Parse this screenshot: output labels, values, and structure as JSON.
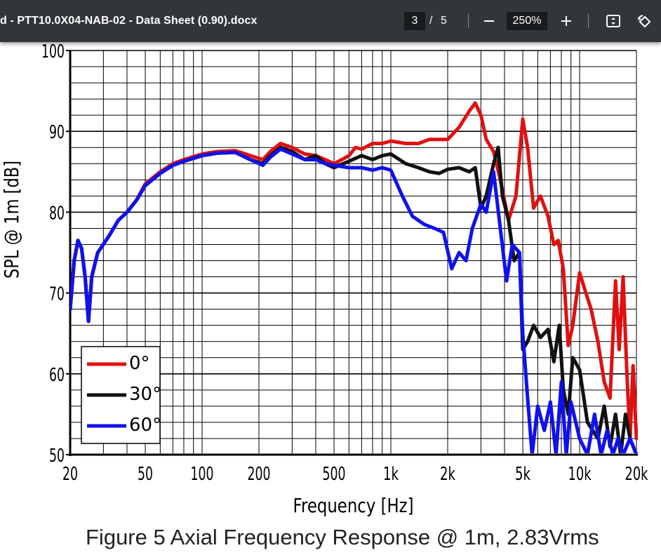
{
  "toolbar": {
    "document_title": "d - PTT10.0X04-NAB-02 - Data Sheet (0.90).docx",
    "current_page": "3",
    "page_separator": "/",
    "total_pages": "5",
    "zoom_level": "250%",
    "icons": [
      "minus-icon",
      "plus-icon",
      "fit-page-icon",
      "rotate-icon"
    ],
    "colors": {
      "background": "#323639",
      "field": "#191b1c",
      "text": "#ffffff"
    }
  },
  "figure": {
    "caption": "Figure 5 Axial Frequency Response @ 1m, 2.83Vrms"
  },
  "chart_data": {
    "type": "line",
    "xlabel": "Frequency [Hz]",
    "ylabel": "SPL @ 1m [dB]",
    "x_scale": "log",
    "xlim": [
      20,
      20000
    ],
    "ylim": [
      50,
      100
    ],
    "x_ticks": [
      20,
      50,
      100,
      200,
      500,
      1000,
      2000,
      5000,
      10000,
      20000
    ],
    "x_tick_labels": [
      "20",
      "50",
      "100",
      "200",
      "500",
      "1k",
      "2k",
      "5k",
      "10k",
      "20k"
    ],
    "y_ticks": [
      50,
      60,
      70,
      80,
      90,
      100
    ],
    "y_tick_labels": [
      "50",
      "60",
      "70",
      "80",
      "90",
      "100"
    ],
    "grid": true,
    "legend_position": "bottom-left",
    "series": [
      {
        "name": "0°",
        "color": "#e01010",
        "points": [
          [
            20,
            68
          ],
          [
            21,
            74
          ],
          [
            22,
            76.5
          ],
          [
            23,
            75.5
          ],
          [
            24,
            72
          ],
          [
            25,
            66.5
          ],
          [
            26,
            72
          ],
          [
            28,
            75
          ],
          [
            32,
            77
          ],
          [
            36,
            79
          ],
          [
            40,
            80
          ],
          [
            45,
            81.5
          ],
          [
            50,
            83.5
          ],
          [
            60,
            85
          ],
          [
            70,
            86
          ],
          [
            80,
            86.5
          ],
          [
            100,
            87.2
          ],
          [
            120,
            87.5
          ],
          [
            150,
            87.6
          ],
          [
            180,
            87
          ],
          [
            210,
            86.5
          ],
          [
            230,
            87.5
          ],
          [
            260,
            88.5
          ],
          [
            300,
            88
          ],
          [
            350,
            87.2
          ],
          [
            400,
            87
          ],
          [
            450,
            86.5
          ],
          [
            500,
            86
          ],
          [
            550,
            86.5
          ],
          [
            600,
            87
          ],
          [
            650,
            88
          ],
          [
            700,
            87.8
          ],
          [
            800,
            88.5
          ],
          [
            900,
            88.5
          ],
          [
            1000,
            88.8
          ],
          [
            1200,
            88.5
          ],
          [
            1400,
            88.5
          ],
          [
            1600,
            89
          ],
          [
            2000,
            89
          ],
          [
            2300,
            90.5
          ],
          [
            2600,
            92.5
          ],
          [
            2800,
            93.5
          ],
          [
            3000,
            92
          ],
          [
            3200,
            89
          ],
          [
            3500,
            87.5
          ],
          [
            3800,
            84
          ],
          [
            4200,
            79
          ],
          [
            4600,
            82
          ],
          [
            5000,
            91.5
          ],
          [
            5300,
            88
          ],
          [
            5700,
            80.5
          ],
          [
            6200,
            82
          ],
          [
            6800,
            79.5
          ],
          [
            7300,
            76
          ],
          [
            7700,
            76.5
          ],
          [
            8200,
            73
          ],
          [
            8700,
            63.5
          ],
          [
            9200,
            66
          ],
          [
            10000,
            72.5
          ],
          [
            10800,
            70
          ],
          [
            11500,
            68
          ],
          [
            12500,
            64
          ],
          [
            13500,
            59
          ],
          [
            14500,
            57
          ],
          [
            15500,
            71.5
          ],
          [
            16200,
            63
          ],
          [
            17000,
            72
          ],
          [
            17800,
            60
          ],
          [
            18500,
            52
          ],
          [
            19200,
            61
          ],
          [
            20000,
            52
          ]
        ]
      },
      {
        "name": "30°",
        "color": "#111111",
        "points": [
          [
            20,
            68
          ],
          [
            21,
            74
          ],
          [
            22,
            76.5
          ],
          [
            23,
            75.5
          ],
          [
            24,
            72
          ],
          [
            25,
            66.5
          ],
          [
            26,
            72
          ],
          [
            28,
            75
          ],
          [
            32,
            77
          ],
          [
            36,
            79
          ],
          [
            40,
            80
          ],
          [
            45,
            81.5
          ],
          [
            50,
            83.3
          ],
          [
            60,
            84.8
          ],
          [
            70,
            85.8
          ],
          [
            80,
            86.3
          ],
          [
            100,
            87
          ],
          [
            120,
            87.3
          ],
          [
            150,
            87.4
          ],
          [
            180,
            86.5
          ],
          [
            210,
            86
          ],
          [
            230,
            87
          ],
          [
            260,
            88
          ],
          [
            300,
            87.5
          ],
          [
            350,
            86.5
          ],
          [
            400,
            87
          ],
          [
            450,
            86
          ],
          [
            500,
            85.5
          ],
          [
            600,
            86.3
          ],
          [
            700,
            87
          ],
          [
            800,
            86.5
          ],
          [
            900,
            87
          ],
          [
            1000,
            87.2
          ],
          [
            1200,
            86
          ],
          [
            1400,
            85.5
          ],
          [
            1600,
            85
          ],
          [
            1800,
            84.8
          ],
          [
            2000,
            85.3
          ],
          [
            2300,
            85.5
          ],
          [
            2600,
            85
          ],
          [
            2800,
            85.5
          ],
          [
            3000,
            80.5
          ],
          [
            3200,
            82
          ],
          [
            3500,
            86
          ],
          [
            3700,
            88
          ],
          [
            3900,
            82
          ],
          [
            4200,
            79
          ],
          [
            4500,
            74
          ],
          [
            4800,
            75
          ],
          [
            5000,
            63
          ],
          [
            5300,
            64
          ],
          [
            5700,
            66
          ],
          [
            6200,
            64.5
          ],
          [
            6800,
            65.5
          ],
          [
            7300,
            61.5
          ],
          [
            7800,
            66
          ],
          [
            8200,
            58
          ],
          [
            8700,
            55
          ],
          [
            9200,
            62
          ],
          [
            10000,
            60.5
          ],
          [
            11000,
            54
          ],
          [
            12500,
            52
          ],
          [
            13500,
            56
          ],
          [
            14500,
            51
          ],
          [
            15500,
            55
          ],
          [
            16500,
            50
          ],
          [
            17500,
            55
          ],
          [
            18500,
            52
          ],
          [
            20000,
            50
          ]
        ]
      },
      {
        "name": "60°",
        "color": "#1010ee",
        "points": [
          [
            20,
            68
          ],
          [
            21,
            74
          ],
          [
            22,
            76.5
          ],
          [
            23,
            75.5
          ],
          [
            24,
            72
          ],
          [
            25,
            66.5
          ],
          [
            26,
            72
          ],
          [
            28,
            75
          ],
          [
            32,
            77
          ],
          [
            36,
            79
          ],
          [
            40,
            80
          ],
          [
            45,
            81.5
          ],
          [
            50,
            83.3
          ],
          [
            60,
            84.8
          ],
          [
            70,
            85.8
          ],
          [
            80,
            86.3
          ],
          [
            100,
            87
          ],
          [
            120,
            87.3
          ],
          [
            150,
            87.4
          ],
          [
            180,
            86.5
          ],
          [
            210,
            85.8
          ],
          [
            230,
            86.8
          ],
          [
            260,
            87.8
          ],
          [
            300,
            87.2
          ],
          [
            350,
            86.5
          ],
          [
            400,
            86.5
          ],
          [
            450,
            86
          ],
          [
            500,
            85.8
          ],
          [
            600,
            85.5
          ],
          [
            700,
            85.5
          ],
          [
            800,
            85.2
          ],
          [
            900,
            85.5
          ],
          [
            1000,
            85.2
          ],
          [
            1150,
            82
          ],
          [
            1300,
            79.5
          ],
          [
            1500,
            78.5
          ],
          [
            1700,
            78
          ],
          [
            1900,
            77.5
          ],
          [
            2100,
            73
          ],
          [
            2300,
            75
          ],
          [
            2500,
            74
          ],
          [
            2700,
            78
          ],
          [
            3000,
            81
          ],
          [
            3200,
            80
          ],
          [
            3500,
            85
          ],
          [
            3800,
            78
          ],
          [
            4100,
            71.5
          ],
          [
            4400,
            76
          ],
          [
            4800,
            75
          ],
          [
            5000,
            65
          ],
          [
            5300,
            57
          ],
          [
            5600,
            50
          ],
          [
            6000,
            56
          ],
          [
            6500,
            53
          ],
          [
            7000,
            56.5
          ],
          [
            7500,
            50
          ],
          [
            8000,
            59
          ],
          [
            8500,
            50
          ],
          [
            9000,
            56.5
          ],
          [
            10000,
            52
          ],
          [
            11000,
            50
          ],
          [
            12000,
            55
          ],
          [
            13000,
            50
          ],
          [
            14000,
            53
          ],
          [
            15000,
            50
          ],
          [
            16000,
            52
          ],
          [
            17000,
            50
          ],
          [
            18500,
            52
          ],
          [
            20000,
            50
          ]
        ]
      }
    ]
  }
}
